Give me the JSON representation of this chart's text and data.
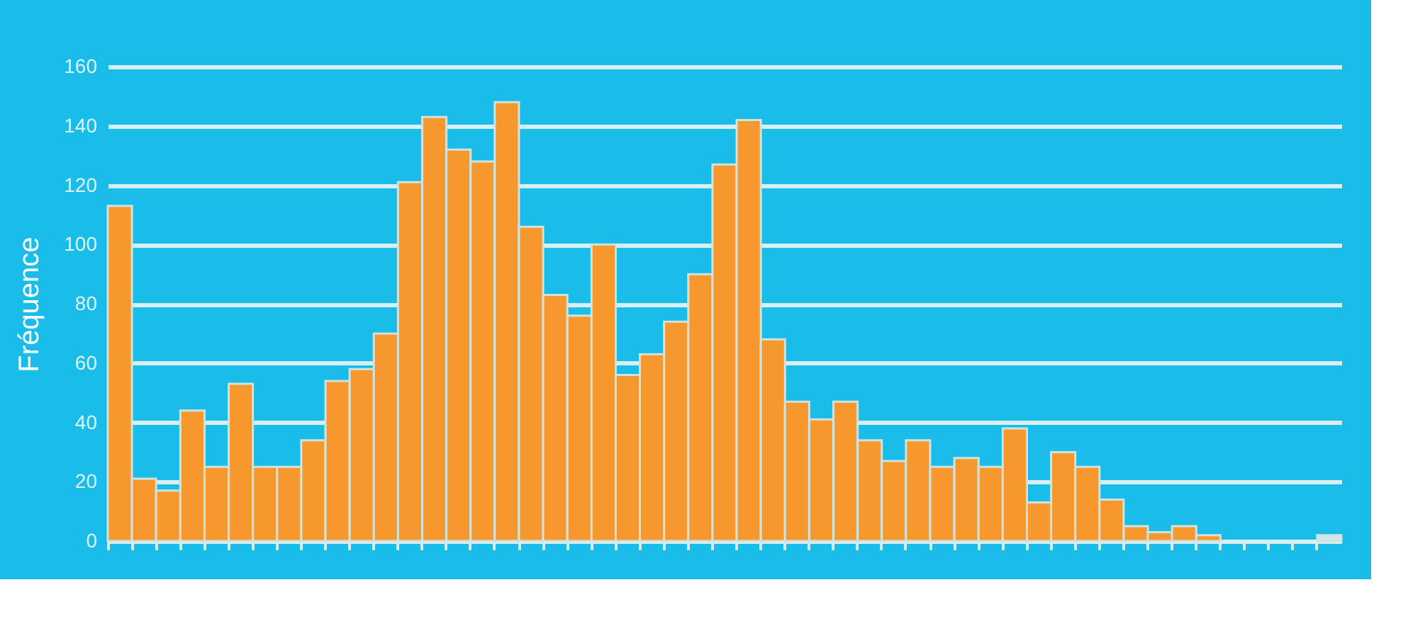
{
  "chart_data": {
    "type": "bar",
    "ylabel": "Fréquence",
    "categories": [
      null,
      null,
      null,
      null,
      null,
      null,
      null,
      null,
      null,
      null,
      null,
      null,
      null,
      null,
      null,
      null,
      null,
      null,
      null,
      null,
      null,
      null,
      null,
      null,
      null,
      null,
      null,
      null,
      null,
      null,
      null,
      null,
      null,
      null,
      null,
      null,
      null,
      null,
      null,
      null,
      null,
      null,
      null,
      null,
      null,
      null,
      null,
      null,
      null,
      null,
      null
    ],
    "values": [
      113,
      21,
      17,
      44,
      25,
      53,
      25,
      25,
      34,
      54,
      58,
      70,
      121,
      143,
      132,
      128,
      148,
      106,
      83,
      76,
      100,
      56,
      63,
      74,
      90,
      127,
      142,
      68,
      47,
      41,
      47,
      34,
      27,
      34,
      25,
      28,
      25,
      38,
      13,
      30,
      25,
      14,
      5,
      3,
      5,
      2,
      null,
      null,
      null,
      null,
      2
    ],
    "colors": [
      "#f7982f",
      "#f7982f",
      "#f7982f",
      "#f7982f",
      "#f7982f",
      "#f7982f",
      "#f7982f",
      "#f7982f",
      "#f7982f",
      "#f7982f",
      "#f7982f",
      "#f7982f",
      "#f7982f",
      "#f7982f",
      "#f7982f",
      "#f7982f",
      "#f7982f",
      "#f7982f",
      "#f7982f",
      "#f7982f",
      "#f7982f",
      "#f7982f",
      "#f7982f",
      "#f7982f",
      "#f7982f",
      "#f7982f",
      "#f7982f",
      "#f7982f",
      "#f7982f",
      "#f7982f",
      "#f7982f",
      "#f7982f",
      "#f7982f",
      "#f7982f",
      "#f7982f",
      "#f7982f",
      "#f7982f",
      "#f7982f",
      "#f7982f",
      "#f7982f",
      "#f7982f",
      "#f7982f",
      "#f7982f",
      "#f7982f",
      "#f7982f",
      "#f7982f",
      "#f7982f",
      "#f7982f",
      "#f7982f",
      "#f7982f",
      "#cde8ee"
    ],
    "ylim": [
      0,
      160
    ],
    "yticks": [
      0,
      20,
      40,
      60,
      80,
      100,
      120,
      140,
      160
    ],
    "grid": "y",
    "tick_labels": "y"
  }
}
